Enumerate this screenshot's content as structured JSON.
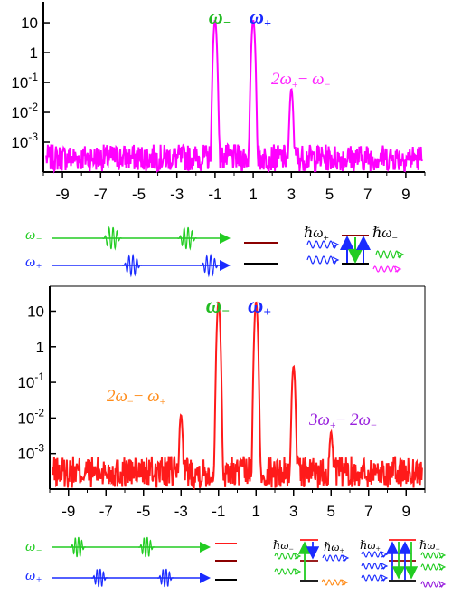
{
  "chart_data": [
    {
      "type": "line",
      "title": "",
      "xlabel": "",
      "ylabel": "",
      "scale_y": "log",
      "xlim": [
        -10,
        10
      ],
      "ylim": [
        0.0001,
        50
      ],
      "x_ticks": [
        "-9",
        "-7",
        "-5",
        "-3",
        "-1",
        "1",
        "3",
        "5",
        "7",
        "9"
      ],
      "y_ticks": [
        "10",
        "1",
        "10-1",
        "10-2",
        "10-3"
      ],
      "noise_floor": 0.0003,
      "series": [
        {
          "color": "#ff00ff",
          "peaks": [
            {
              "x": -1,
              "y": 12
            },
            {
              "x": 1,
              "y": 12
            },
            {
              "x": 3,
              "y": 0.06
            }
          ]
        }
      ],
      "annotations": [
        {
          "text": "ω",
          "sub": "−",
          "color": "#22bb22",
          "at_x": -1
        },
        {
          "text": "ω",
          "sub": "+",
          "color": "#1a2bff",
          "at_x": 1
        },
        {
          "text": "2ω₊− ω₋",
          "color": "#ff22ff",
          "at_x": 3
        }
      ]
    },
    {
      "type": "line",
      "title": "",
      "xlabel": "",
      "ylabel": "",
      "scale_y": "log",
      "xlim": [
        -10,
        10
      ],
      "ylim": [
        0.0001,
        50
      ],
      "x_ticks": [
        "-9",
        "-7",
        "-5",
        "-3",
        "-1",
        "1",
        "3",
        "5",
        "7",
        "9"
      ],
      "y_ticks": [
        "10",
        "1",
        "10-1",
        "10-2",
        "10-3"
      ],
      "noise_floor": 0.0003,
      "series": [
        {
          "color": "#ff1a1a",
          "peaks": [
            {
              "x": -3,
              "y": 0.012
            },
            {
              "x": -1,
              "y": 18
            },
            {
              "x": 1,
              "y": 18
            },
            {
              "x": 3,
              "y": 0.28
            },
            {
              "x": 5,
              "y": 0.004
            }
          ]
        }
      ],
      "annotations": [
        {
          "text": "ω",
          "sub": "−",
          "color": "#22bb22",
          "at_x": -1
        },
        {
          "text": "ω",
          "sub": "+",
          "color": "#1a2bff",
          "at_x": 1
        },
        {
          "text": "2ω₋− ω₊",
          "color": "#ff8c1a",
          "at_x": -3
        },
        {
          "text": "3ω₊− 2ω₋",
          "color": "#9922dd",
          "at_x": 5
        }
      ]
    }
  ],
  "diagram_top": {
    "beam_minus": "ω₋",
    "beam_plus": "ω₊",
    "hbar_plus": "ℏω₊",
    "hbar_minus": "ℏω₋"
  },
  "diagram_bottom": {
    "beam_minus": "ω₋",
    "beam_plus": "ω₊",
    "hbar_minus_1": "ℏω₋",
    "hbar_plus_1": "ℏω₊",
    "hbar_plus_2": "ℏω₊",
    "hbar_minus_2": "ℏω₋"
  },
  "colors": {
    "green": "#22cc22",
    "blue": "#1a2bff",
    "magenta": "#ff22ff",
    "red": "#ff1a1a",
    "orange": "#ff8c1a",
    "purple": "#9922dd",
    "dark_red": "#8b0000"
  }
}
